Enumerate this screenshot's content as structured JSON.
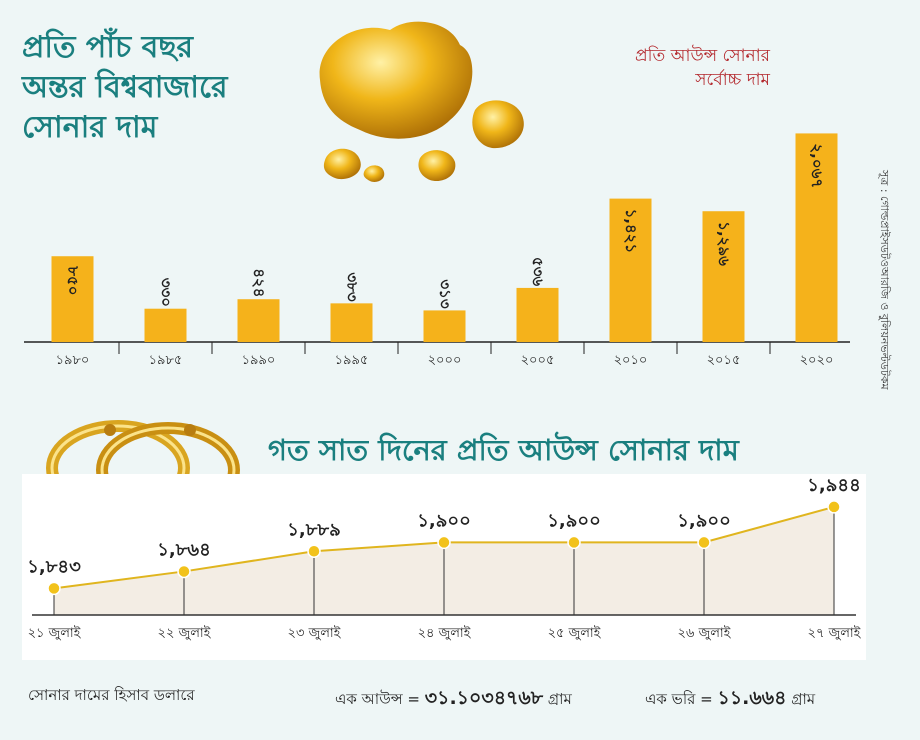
{
  "title": "প্রতি পাঁচ বছর অন্তর বিশ্ববাজারে সোনার দাম",
  "title_lines": [
    "প্রতি পাঁচ বছর",
    "অন্তর বিশ্ববাজারে",
    "সোনার দাম"
  ],
  "subheading": [
    "প্রতি আউন্স সোনার",
    "সর্বোচ্চ দাম"
  ],
  "source": "সূত্র : গোল্ডপ্রাইসডটওআরজি ও বুলিয়নভল্টডটকম",
  "colors": {
    "teal": "#1a7f7f",
    "red": "#b3282d",
    "bar": "#f5b21b",
    "line": "#e0b51e",
    "fill": "#f3ede4"
  },
  "chart_data": [
    {
      "type": "bar",
      "categories": [
        "১৯৮০",
        "১৯৮৫",
        "১৯৯০",
        "১৯৯৫",
        "২০০০",
        "২০০৫",
        "২০১০",
        "২০১৫",
        "২০২০"
      ],
      "values": [
        850,
        330,
        424,
        383,
        313,
        536,
        1421,
        1296,
        2067
      ],
      "value_labels": [
        "৮৫০",
        "৩৩০",
        "৪২৪",
        "৩৮৩",
        "৩১৩",
        "৫৩৬",
        "১,৪২১",
        "১,২৯৬",
        "২,০৬৭"
      ],
      "ylim": [
        0,
        2200
      ]
    },
    {
      "type": "area",
      "title": "গত সাত দিনের প্রতি আউন্স সোনার দাম",
      "categories": [
        "২১ জুলাই",
        "২২ জুলাই",
        "২৩ জুলাই",
        "২৪ জুলাই",
        "২৫ জুলাই",
        "২৬ জুলাই",
        "২৭ জুলাই"
      ],
      "values": [
        1843,
        1864,
        1889,
        1900,
        1900,
        1900,
        1944
      ],
      "value_labels": [
        "১,৮৪৩",
        "১,৮৬৪",
        "১,৮৮৯",
        "১,৯০০",
        "১,৯০০",
        "১,৯০০",
        "১,৯৪৪"
      ],
      "ylim": [
        1810,
        1960
      ]
    }
  ],
  "footer": {
    "note": "সোনার দামের হিসাব ডলারে",
    "ounce_label": "এক আউন্স =",
    "ounce_value": "৩১.১০৩৪৭৬৮",
    "ounce_unit": "গ্রাম",
    "bhori_label": "এক ভরি =",
    "bhori_value": "১১.৬৬৪",
    "bhori_unit": "গ্রাম"
  }
}
